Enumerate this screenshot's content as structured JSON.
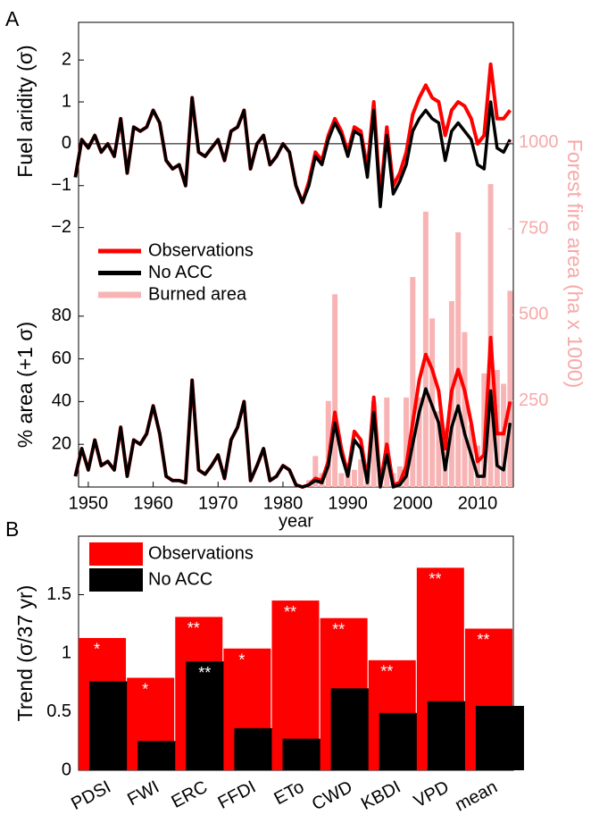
{
  "chart_data": [
    {
      "type": "line",
      "panel": "A",
      "ylabel": "Fuel aridity (σ)",
      "x": [
        1948,
        1949,
        1950,
        1951,
        1952,
        1953,
        1954,
        1955,
        1956,
        1957,
        1958,
        1959,
        1960,
        1961,
        1962,
        1963,
        1964,
        1965,
        1966,
        1967,
        1968,
        1969,
        1970,
        1971,
        1972,
        1973,
        1974,
        1975,
        1976,
        1977,
        1978,
        1979,
        1980,
        1981,
        1982,
        1983,
        1984,
        1985,
        1986,
        1987,
        1988,
        1989,
        1990,
        1991,
        1992,
        1993,
        1994,
        1995,
        1996,
        1997,
        1998,
        1999,
        2000,
        2001,
        2002,
        2003,
        2004,
        2005,
        2006,
        2007,
        2008,
        2009,
        2010,
        2011,
        2012,
        2013,
        2014,
        2015
      ],
      "xlim": [
        1948.5,
        2015.5
      ],
      "ylim": [
        -2.2,
        2.9
      ],
      "reference_line": 0,
      "yticks": [
        {
          "value": -2,
          "label": "−2"
        },
        {
          "value": -1,
          "label": "−1"
        },
        0,
        1,
        2
      ],
      "series": [
        {
          "color": "#ff0000",
          "values": [
            -0.8,
            0.1,
            -0.1,
            0.2,
            -0.2,
            0.0,
            -0.3,
            0.6,
            -0.7,
            0.4,
            0.3,
            0.4,
            0.8,
            0.5,
            -0.4,
            -0.6,
            -0.5,
            -1.0,
            1.1,
            -0.2,
            -0.3,
            -0.1,
            0.1,
            -0.4,
            0.3,
            0.4,
            0.8,
            -0.6,
            0.0,
            0.2,
            -0.5,
            -0.3,
            0.0,
            -0.2,
            -1.0,
            -1.4,
            -0.9,
            -0.2,
            -0.4,
            0.2,
            0.6,
            0.3,
            -0.2,
            0.4,
            0.3,
            -0.6,
            1.0,
            -1.3,
            0.4,
            -1.0,
            -0.7,
            -0.2,
            0.7,
            1.1,
            1.4,
            1.1,
            1.0,
            0.2,
            0.8,
            1.0,
            0.9,
            0.6,
            0.0,
            0.2,
            1.9,
            0.6,
            0.6,
            0.8
          ]
        },
        {
          "color": "#000000",
          "values": [
            -0.8,
            0.1,
            -0.1,
            0.2,
            -0.2,
            0.0,
            -0.3,
            0.6,
            -0.7,
            0.4,
            0.3,
            0.4,
            0.8,
            0.5,
            -0.4,
            -0.6,
            -0.5,
            -1.0,
            1.1,
            -0.2,
            -0.3,
            -0.1,
            0.1,
            -0.4,
            0.3,
            0.4,
            0.8,
            -0.6,
            0.0,
            0.2,
            -0.5,
            -0.3,
            0.0,
            -0.2,
            -1.0,
            -1.4,
            -1.0,
            -0.3,
            -0.5,
            0.1,
            0.5,
            0.2,
            -0.3,
            0.3,
            0.2,
            -0.8,
            0.8,
            -1.5,
            0.2,
            -1.2,
            -0.9,
            -0.5,
            0.3,
            0.6,
            0.8,
            0.6,
            0.5,
            -0.4,
            0.3,
            0.5,
            0.3,
            0.1,
            -0.5,
            -0.6,
            1.0,
            -0.1,
            -0.2,
            0.1
          ]
        }
      ]
    },
    {
      "type": "line",
      "ylabel": "% area (+1 σ)",
      "xlabel": "year",
      "y2label": "Forest fire area (ha x 1000)",
      "x": [
        1948,
        1949,
        1950,
        1951,
        1952,
        1953,
        1954,
        1955,
        1956,
        1957,
        1958,
        1959,
        1960,
        1961,
        1962,
        1963,
        1964,
        1965,
        1966,
        1967,
        1968,
        1969,
        1970,
        1971,
        1972,
        1973,
        1974,
        1975,
        1976,
        1977,
        1978,
        1979,
        1980,
        1981,
        1982,
        1983,
        1984,
        1985,
        1986,
        1987,
        1988,
        1989,
        1990,
        1991,
        1992,
        1993,
        1994,
        1995,
        1996,
        1997,
        1998,
        1999,
        2000,
        2001,
        2002,
        2003,
        2004,
        2005,
        2006,
        2007,
        2008,
        2009,
        2010,
        2011,
        2012,
        2013,
        2014,
        2015
      ],
      "xlim": [
        1948.5,
        2015.5
      ],
      "xticks": [
        1950,
        1960,
        1970,
        1980,
        1990,
        2000,
        2010
      ],
      "ylim": [
        0,
        100
      ],
      "yticks": [
        20,
        40,
        60,
        80
      ],
      "y2lim": [
        0,
        1350
      ],
      "y2ticks": [
        250,
        500,
        750,
        1000
      ],
      "y2color": "#f7a9a9",
      "series": [
        {
          "name": "Observations",
          "color": "#ff0000",
          "values": [
            5,
            18,
            8,
            22,
            10,
            12,
            8,
            28,
            5,
            22,
            20,
            25,
            38,
            25,
            5,
            3,
            3,
            2,
            50,
            8,
            6,
            10,
            15,
            4,
            22,
            28,
            40,
            3,
            10,
            18,
            3,
            5,
            10,
            8,
            1,
            0,
            1,
            4,
            3,
            12,
            35,
            18,
            6,
            26,
            22,
            3,
            42,
            1,
            20,
            1,
            2,
            10,
            30,
            50,
            62,
            55,
            45,
            18,
            45,
            55,
            45,
            30,
            12,
            15,
            70,
            25,
            25,
            40
          ]
        },
        {
          "name": "No ACC",
          "color": "#000000",
          "values": [
            5,
            18,
            8,
            22,
            10,
            12,
            8,
            28,
            5,
            22,
            20,
            25,
            38,
            25,
            5,
            3,
            3,
            2,
            50,
            8,
            6,
            10,
            15,
            4,
            22,
            28,
            40,
            3,
            10,
            18,
            3,
            5,
            10,
            8,
            1,
            0,
            1,
            3,
            2,
            10,
            30,
            15,
            5,
            22,
            18,
            2,
            35,
            0,
            15,
            0,
            1,
            5,
            20,
            35,
            46,
            38,
            30,
            8,
            28,
            38,
            25,
            15,
            5,
            5,
            45,
            10,
            8,
            30
          ]
        },
        {
          "name": "Burned area",
          "color": "#f8b4b4",
          "axis": "y2",
          "kind": "bar",
          "x": [
            1984,
            1985,
            1986,
            1987,
            1988,
            1989,
            1990,
            1991,
            1992,
            1993,
            1994,
            1995,
            1996,
            1997,
            1998,
            1999,
            2000,
            2001,
            2002,
            2003,
            2004,
            2005,
            2006,
            2007,
            2008,
            2009,
            2010,
            2011,
            2012,
            2013,
            2014,
            2015
          ],
          "values": [
            20,
            90,
            40,
            250,
            560,
            40,
            70,
            50,
            80,
            40,
            250,
            50,
            260,
            40,
            60,
            260,
            610,
            260,
            800,
            490,
            220,
            170,
            540,
            740,
            450,
            180,
            120,
            330,
            880,
            340,
            300,
            570
          ]
        }
      ]
    },
    {
      "type": "bar",
      "panel": "B",
      "ylabel": "Trend (σ/37 yr)",
      "categories": [
        "PDSI",
        "FWI",
        "ERC",
        "FFDI",
        "ETo",
        "CWD",
        "KBDI",
        "VPD",
        "mean"
      ],
      "ylim": [
        0,
        2
      ],
      "yticks": [
        0,
        0.5,
        1,
        1.5
      ],
      "series": [
        {
          "name": "Observations",
          "color": "#ff0000",
          "values": [
            1.13,
            0.79,
            1.31,
            1.04,
            1.45,
            1.3,
            0.94,
            1.73,
            1.21
          ],
          "significance": [
            "*",
            "*",
            "**",
            "*",
            "**",
            "**",
            "**",
            "**",
            "**"
          ]
        },
        {
          "name": "No ACC",
          "color": "#000000",
          "values": [
            0.76,
            0.25,
            0.93,
            0.36,
            0.27,
            0.7,
            0.49,
            0.59,
            0.55
          ],
          "significance": [
            null,
            null,
            "**",
            null,
            null,
            null,
            null,
            null,
            null
          ]
        }
      ]
    }
  ]
}
